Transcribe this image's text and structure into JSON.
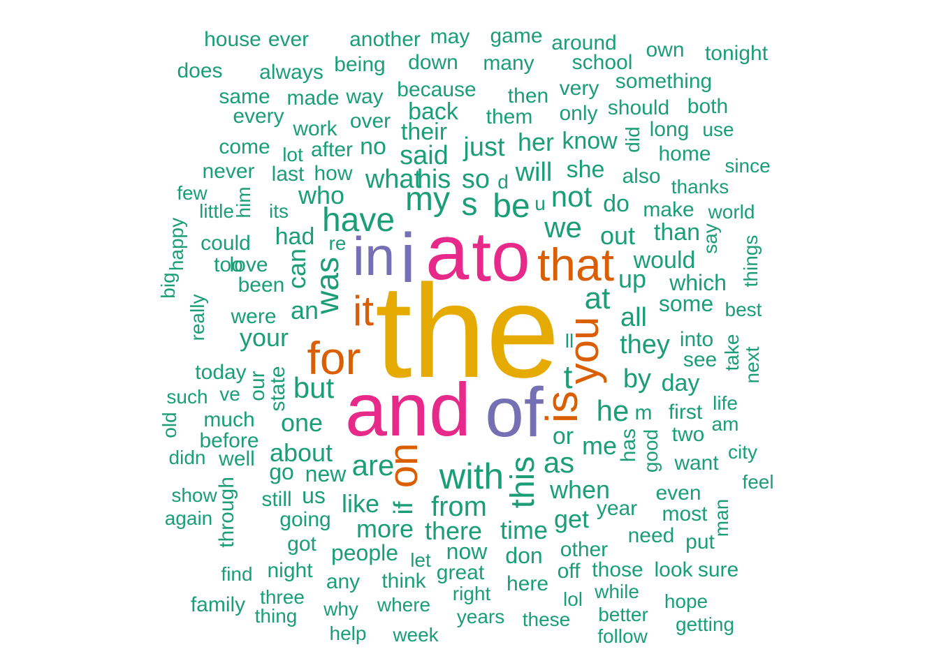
{
  "colors": {
    "small": "#1b9e77",
    "mid": "#d95f02",
    "large1": "#7570b3",
    "large2": "#e7298a",
    "largest": "#e6ab02"
  },
  "words": [
    {
      "text": "the",
      "size": 9,
      "color": "largest"
    },
    {
      "text": "and",
      "size": 7,
      "color": "large2"
    },
    {
      "text": "to",
      "size": 7,
      "color": "large2"
    },
    {
      "text": "a",
      "size": 7,
      "color": "large2"
    },
    {
      "text": "of",
      "size": 6,
      "color": "large1"
    },
    {
      "text": "in",
      "size": 6,
      "color": "large1"
    },
    {
      "text": "i",
      "size": 6,
      "color": "large1"
    },
    {
      "text": "that",
      "size": 5,
      "color": "mid"
    },
    {
      "text": "for",
      "size": 5,
      "color": "mid"
    },
    {
      "text": "is",
      "size": 5,
      "color": "mid"
    },
    {
      "text": "it",
      "size": 5,
      "color": "mid"
    },
    {
      "text": "you",
      "size": 5,
      "color": "mid"
    },
    {
      "text": "on",
      "size": 5,
      "color": "mid"
    },
    {
      "text": "with",
      "size": 4,
      "color": "small"
    },
    {
      "text": "was",
      "size": 4,
      "color": "small"
    },
    {
      "text": "have",
      "size": 4,
      "color": "small"
    },
    {
      "text": "my",
      "size": 4,
      "color": "small"
    },
    {
      "text": "be",
      "size": 4,
      "color": "small"
    },
    {
      "text": "this",
      "size": 4,
      "color": "small"
    },
    {
      "text": "we",
      "size": 4,
      "color": "small"
    },
    {
      "text": "at",
      "size": 4,
      "color": "small"
    },
    {
      "text": "are",
      "size": 4,
      "color": "small"
    },
    {
      "text": "but",
      "size": 4,
      "color": "small"
    },
    {
      "text": "not",
      "size": 4,
      "color": "small"
    },
    {
      "text": "he",
      "size": 4,
      "color": "small"
    },
    {
      "text": "as",
      "size": 4,
      "color": "small"
    },
    {
      "text": "from",
      "size": 4,
      "color": "small"
    },
    {
      "text": "s",
      "size": 4,
      "color": "small"
    },
    {
      "text": "t",
      "size": 4,
      "color": "small"
    },
    {
      "text": "they",
      "size": 3,
      "color": "small"
    },
    {
      "text": "what",
      "size": 3,
      "color": "small"
    },
    {
      "text": "his",
      "size": 3,
      "color": "small"
    },
    {
      "text": "so",
      "size": 3,
      "color": "small"
    },
    {
      "text": "will",
      "size": 3,
      "color": "small"
    },
    {
      "text": "said",
      "size": 3,
      "color": "small"
    },
    {
      "text": "just",
      "size": 3,
      "color": "small"
    },
    {
      "text": "all",
      "size": 3,
      "color": "small"
    },
    {
      "text": "your",
      "size": 3,
      "color": "small"
    },
    {
      "text": "about",
      "size": 3,
      "color": "small"
    },
    {
      "text": "one",
      "size": 3,
      "color": "small"
    },
    {
      "text": "by",
      "size": 3,
      "color": "small"
    },
    {
      "text": "me",
      "size": 3,
      "color": "small"
    },
    {
      "text": "if",
      "size": 3,
      "color": "small"
    },
    {
      "text": "an",
      "size": 3,
      "color": "small"
    },
    {
      "text": "can",
      "size": 3,
      "color": "small"
    },
    {
      "text": "out",
      "size": 3,
      "color": "small"
    },
    {
      "text": "up",
      "size": 3,
      "color": "small"
    },
    {
      "text": "who",
      "size": 3,
      "color": "small"
    },
    {
      "text": "her",
      "size": 3,
      "color": "small"
    },
    {
      "text": "like",
      "size": 3,
      "color": "small"
    },
    {
      "text": "more",
      "size": 3,
      "color": "small"
    },
    {
      "text": "there",
      "size": 3,
      "color": "small"
    },
    {
      "text": "time",
      "size": 3,
      "color": "small"
    },
    {
      "text": "get",
      "size": 3,
      "color": "small"
    },
    {
      "text": "when",
      "size": 3,
      "color": "small"
    },
    {
      "text": "or",
      "size": 3,
      "color": "small"
    },
    {
      "text": "would",
      "size": 3,
      "color": "small"
    },
    {
      "text": "day",
      "size": 3,
      "color": "small"
    },
    {
      "text": "had",
      "size": 3,
      "color": "small"
    },
    {
      "text": "she",
      "size": 3,
      "color": "small"
    },
    {
      "text": "know",
      "size": 3,
      "color": "small"
    },
    {
      "text": "their",
      "size": 3,
      "color": "small"
    },
    {
      "text": "back",
      "size": 3,
      "color": "small"
    },
    {
      "text": "no",
      "size": 3,
      "color": "small"
    },
    {
      "text": "do",
      "size": 3,
      "color": "small"
    },
    {
      "text": "than",
      "size": 3,
      "color": "small"
    },
    {
      "text": "which",
      "size": 3,
      "color": "small"
    },
    {
      "text": "some",
      "size": 3,
      "color": "small"
    },
    {
      "text": "new",
      "size": 3,
      "color": "small"
    },
    {
      "text": "go",
      "size": 3,
      "color": "small"
    },
    {
      "text": "us",
      "size": 3,
      "color": "small"
    },
    {
      "text": "people",
      "size": 3,
      "color": "small"
    },
    {
      "text": "now",
      "size": 3,
      "color": "small"
    },
    {
      "text": "don",
      "size": 3,
      "color": "small"
    },
    {
      "text": "been",
      "size": 2,
      "color": "small"
    },
    {
      "text": "love",
      "size": 2,
      "color": "small"
    },
    {
      "text": "too",
      "size": 2,
      "color": "small"
    },
    {
      "text": "could",
      "size": 2,
      "color": "small"
    },
    {
      "text": "were",
      "size": 2,
      "color": "small"
    },
    {
      "text": "today",
      "size": 2,
      "color": "small"
    },
    {
      "text": "our",
      "size": 2,
      "color": "small"
    },
    {
      "text": "state",
      "size": 2,
      "color": "small"
    },
    {
      "text": "much",
      "size": 2,
      "color": "small"
    },
    {
      "text": "before",
      "size": 2,
      "color": "small"
    },
    {
      "text": "well",
      "size": 2,
      "color": "small"
    },
    {
      "text": "still",
      "size": 2,
      "color": "small"
    },
    {
      "text": "going",
      "size": 2,
      "color": "small"
    },
    {
      "text": "got",
      "size": 2,
      "color": "small"
    },
    {
      "text": "through",
      "size": 2,
      "color": "small"
    },
    {
      "text": "night",
      "size": 2,
      "color": "small"
    },
    {
      "text": "any",
      "size": 2,
      "color": "small"
    },
    {
      "text": "think",
      "size": 2,
      "color": "small"
    },
    {
      "text": "let",
      "size": 2,
      "color": "small"
    },
    {
      "text": "great",
      "size": 2,
      "color": "small"
    },
    {
      "text": "here",
      "size": 2,
      "color": "small"
    },
    {
      "text": "other",
      "size": 2,
      "color": "small"
    },
    {
      "text": "off",
      "size": 2,
      "color": "small"
    },
    {
      "text": "those",
      "size": 2,
      "color": "small"
    },
    {
      "text": "look",
      "size": 2,
      "color": "small"
    },
    {
      "text": "sure",
      "size": 2,
      "color": "small"
    },
    {
      "text": "year",
      "size": 2,
      "color": "small"
    },
    {
      "text": "need",
      "size": 2,
      "color": "small"
    },
    {
      "text": "most",
      "size": 2,
      "color": "small"
    },
    {
      "text": "even",
      "size": 2,
      "color": "small"
    },
    {
      "text": "put",
      "size": 2,
      "color": "small"
    },
    {
      "text": "want",
      "size": 2,
      "color": "small"
    },
    {
      "text": "two",
      "size": 2,
      "color": "small"
    },
    {
      "text": "first",
      "size": 2,
      "color": "small"
    },
    {
      "text": "see",
      "size": 2,
      "color": "small"
    },
    {
      "text": "into",
      "size": 2,
      "color": "small"
    },
    {
      "text": "best",
      "size": 2,
      "color": "small"
    },
    {
      "text": "make",
      "size": 2,
      "color": "small"
    },
    {
      "text": "also",
      "size": 2,
      "color": "small"
    },
    {
      "text": "thanks",
      "size": 2,
      "color": "small"
    },
    {
      "text": "home",
      "size": 2,
      "color": "small"
    },
    {
      "text": "long",
      "size": 2,
      "color": "small"
    },
    {
      "text": "use",
      "size": 2,
      "color": "small"
    },
    {
      "text": "should",
      "size": 2,
      "color": "small"
    },
    {
      "text": "only",
      "size": 2,
      "color": "small"
    },
    {
      "text": "very",
      "size": 2,
      "color": "small"
    },
    {
      "text": "them",
      "size": 2,
      "color": "small"
    },
    {
      "text": "then",
      "size": 2,
      "color": "small"
    },
    {
      "text": "because",
      "size": 2,
      "color": "small"
    },
    {
      "text": "over",
      "size": 2,
      "color": "small"
    },
    {
      "text": "way",
      "size": 2,
      "color": "small"
    },
    {
      "text": "made",
      "size": 2,
      "color": "small"
    },
    {
      "text": "same",
      "size": 2,
      "color": "small"
    },
    {
      "text": "every",
      "size": 2,
      "color": "small"
    },
    {
      "text": "work",
      "size": 2,
      "color": "small"
    },
    {
      "text": "after",
      "size": 2,
      "color": "small"
    },
    {
      "text": "lot",
      "size": 2,
      "color": "small"
    },
    {
      "text": "come",
      "size": 2,
      "color": "small"
    },
    {
      "text": "never",
      "size": 2,
      "color": "small"
    },
    {
      "text": "last",
      "size": 2,
      "color": "small"
    },
    {
      "text": "how",
      "size": 2,
      "color": "small"
    },
    {
      "text": "few",
      "size": 2,
      "color": "small"
    },
    {
      "text": "little",
      "size": 2,
      "color": "small"
    },
    {
      "text": "him",
      "size": 2,
      "color": "small"
    },
    {
      "text": "its",
      "size": 2,
      "color": "small"
    },
    {
      "text": "happy",
      "size": 2,
      "color": "small"
    },
    {
      "text": "big",
      "size": 2,
      "color": "small"
    },
    {
      "text": "really",
      "size": 2,
      "color": "small"
    },
    {
      "text": "re",
      "size": 2,
      "color": "small"
    },
    {
      "text": "such",
      "size": 2,
      "color": "small"
    },
    {
      "text": "ve",
      "size": 2,
      "color": "small"
    },
    {
      "text": "old",
      "size": 2,
      "color": "small"
    },
    {
      "text": "didn",
      "size": 2,
      "color": "small"
    },
    {
      "text": "show",
      "size": 2,
      "color": "small"
    },
    {
      "text": "again",
      "size": 2,
      "color": "small"
    },
    {
      "text": "find",
      "size": 2,
      "color": "small"
    },
    {
      "text": "family",
      "size": 2,
      "color": "small"
    },
    {
      "text": "three",
      "size": 2,
      "color": "small"
    },
    {
      "text": "thing",
      "size": 2,
      "color": "small"
    },
    {
      "text": "why",
      "size": 2,
      "color": "small"
    },
    {
      "text": "help",
      "size": 2,
      "color": "small"
    },
    {
      "text": "where",
      "size": 2,
      "color": "small"
    },
    {
      "text": "week",
      "size": 2,
      "color": "small"
    },
    {
      "text": "right",
      "size": 2,
      "color": "small"
    },
    {
      "text": "years",
      "size": 2,
      "color": "small"
    },
    {
      "text": "these",
      "size": 2,
      "color": "small"
    },
    {
      "text": "lol",
      "size": 2,
      "color": "small"
    },
    {
      "text": "while",
      "size": 2,
      "color": "small"
    },
    {
      "text": "better",
      "size": 2,
      "color": "small"
    },
    {
      "text": "follow",
      "size": 2,
      "color": "small"
    },
    {
      "text": "hope",
      "size": 2,
      "color": "small"
    },
    {
      "text": "getting",
      "size": 2,
      "color": "small"
    },
    {
      "text": "man",
      "size": 2,
      "color": "small"
    },
    {
      "text": "feel",
      "size": 2,
      "color": "small"
    },
    {
      "text": "city",
      "size": 2,
      "color": "small"
    },
    {
      "text": "am",
      "size": 2,
      "color": "small"
    },
    {
      "text": "life",
      "size": 2,
      "color": "small"
    },
    {
      "text": "next",
      "size": 2,
      "color": "small"
    },
    {
      "text": "take",
      "size": 2,
      "color": "small"
    },
    {
      "text": "things",
      "size": 2,
      "color": "small"
    },
    {
      "text": "say",
      "size": 2,
      "color": "small"
    },
    {
      "text": "world",
      "size": 2,
      "color": "small"
    },
    {
      "text": "since",
      "size": 2,
      "color": "small"
    },
    {
      "text": "good",
      "size": 2,
      "color": "small"
    },
    {
      "text": "has",
      "size": 2,
      "color": "small"
    },
    {
      "text": "m",
      "size": 2,
      "color": "small"
    },
    {
      "text": "did",
      "size": 2,
      "color": "small"
    },
    {
      "text": "d",
      "size": 2,
      "color": "small"
    },
    {
      "text": "u",
      "size": 2,
      "color": "small"
    },
    {
      "text": "ll",
      "size": 2,
      "color": "small"
    },
    {
      "text": "house",
      "size": 2,
      "color": "small"
    },
    {
      "text": "ever",
      "size": 2,
      "color": "small"
    },
    {
      "text": "another",
      "size": 2,
      "color": "small"
    },
    {
      "text": "may",
      "size": 2,
      "color": "small"
    },
    {
      "text": "game",
      "size": 2,
      "color": "small"
    },
    {
      "text": "around",
      "size": 2,
      "color": "small"
    },
    {
      "text": "own",
      "size": 2,
      "color": "small"
    },
    {
      "text": "tonight",
      "size": 2,
      "color": "small"
    },
    {
      "text": "does",
      "size": 2,
      "color": "small"
    },
    {
      "text": "always",
      "size": 2,
      "color": "small"
    },
    {
      "text": "being",
      "size": 2,
      "color": "small"
    },
    {
      "text": "down",
      "size": 2,
      "color": "small"
    },
    {
      "text": "many",
      "size": 2,
      "color": "small"
    },
    {
      "text": "school",
      "size": 2,
      "color": "small"
    },
    {
      "text": "something",
      "size": 2,
      "color": "small"
    },
    {
      "text": "both",
      "size": 2,
      "color": "small"
    }
  ]
}
